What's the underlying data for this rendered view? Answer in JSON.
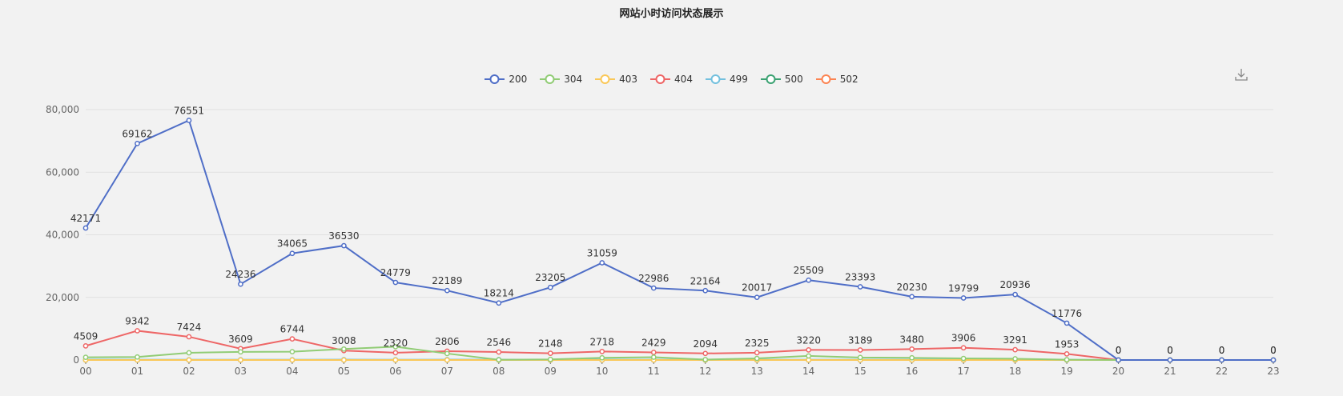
{
  "chart_data": {
    "type": "line",
    "title": "网站小时访问状态展示",
    "categories": [
      "00",
      "01",
      "02",
      "03",
      "04",
      "05",
      "06",
      "07",
      "08",
      "09",
      "10",
      "11",
      "12",
      "13",
      "14",
      "15",
      "16",
      "17",
      "18",
      "19",
      "20",
      "21",
      "22",
      "23"
    ],
    "ylim": [
      0,
      80000
    ],
    "yticks": [
      0,
      20000,
      40000,
      60000,
      80000
    ],
    "ytick_labels": [
      "0",
      "20,000",
      "40,000",
      "60,000",
      "80,000"
    ],
    "grid": true,
    "legend_position": "top-center",
    "series": [
      {
        "name": "200",
        "color": "#4f6ec7",
        "values": [
          42171,
          69162,
          76551,
          24236,
          34065,
          36530,
          24779,
          22189,
          18214,
          23205,
          31059,
          22986,
          22164,
          20017,
          25509,
          23393,
          20230,
          19799,
          20936,
          11776,
          0,
          0,
          0,
          0
        ],
        "show_labels": true
      },
      {
        "name": "304",
        "color": "#91cc75",
        "values": [
          866,
          964,
          2298,
          2600,
          2663,
          3500,
          4252,
          2060,
          80,
          200,
          700,
          900,
          140,
          500,
          1300,
          800,
          700,
          500,
          400,
          100,
          0,
          0,
          0,
          0
        ],
        "show_labels": false
      },
      {
        "name": "403",
        "color": "#fac858",
        "values": [
          0,
          0,
          0,
          0,
          0,
          0,
          0,
          0,
          0,
          0,
          0,
          0,
          0,
          0,
          0,
          0,
          0,
          0,
          0,
          0,
          0,
          0,
          0,
          0
        ],
        "show_labels": false
      },
      {
        "name": "404",
        "color": "#ee6666",
        "values": [
          4509,
          9342,
          7424,
          3609,
          6744,
          3008,
          2320,
          2806,
          2546,
          2148,
          2718,
          2429,
          2094,
          2325,
          3220,
          3189,
          3480,
          3906,
          3291,
          1953,
          0,
          0,
          0,
          0
        ],
        "show_labels": true
      },
      {
        "name": "499",
        "color": "#73c0de",
        "values": [
          120,
          102,
          80,
          106,
          90,
          120,
          100,
          130,
          120,
          110,
          120,
          110,
          109,
          100,
          110,
          105,
          105,
          110,
          100,
          60,
          0,
          0,
          0,
          0
        ],
        "show_labels": false
      },
      {
        "name": "500",
        "color": "#3ba272",
        "values": [
          0,
          0,
          0,
          0,
          0,
          0,
          0,
          0,
          0,
          0,
          0,
          0,
          0,
          0,
          0,
          0,
          0,
          0,
          0,
          0,
          0,
          0,
          0,
          0
        ],
        "show_labels": false
      },
      {
        "name": "502",
        "color": "#fc8452",
        "values": [
          0,
          0,
          0,
          0,
          0,
          0,
          0,
          0,
          0,
          0,
          0,
          0,
          0,
          0,
          0,
          0,
          0,
          0,
          0,
          0,
          0,
          0,
          0,
          0
        ],
        "show_labels": false
      }
    ]
  },
  "toolbar": {
    "download_icon": "download-icon"
  }
}
